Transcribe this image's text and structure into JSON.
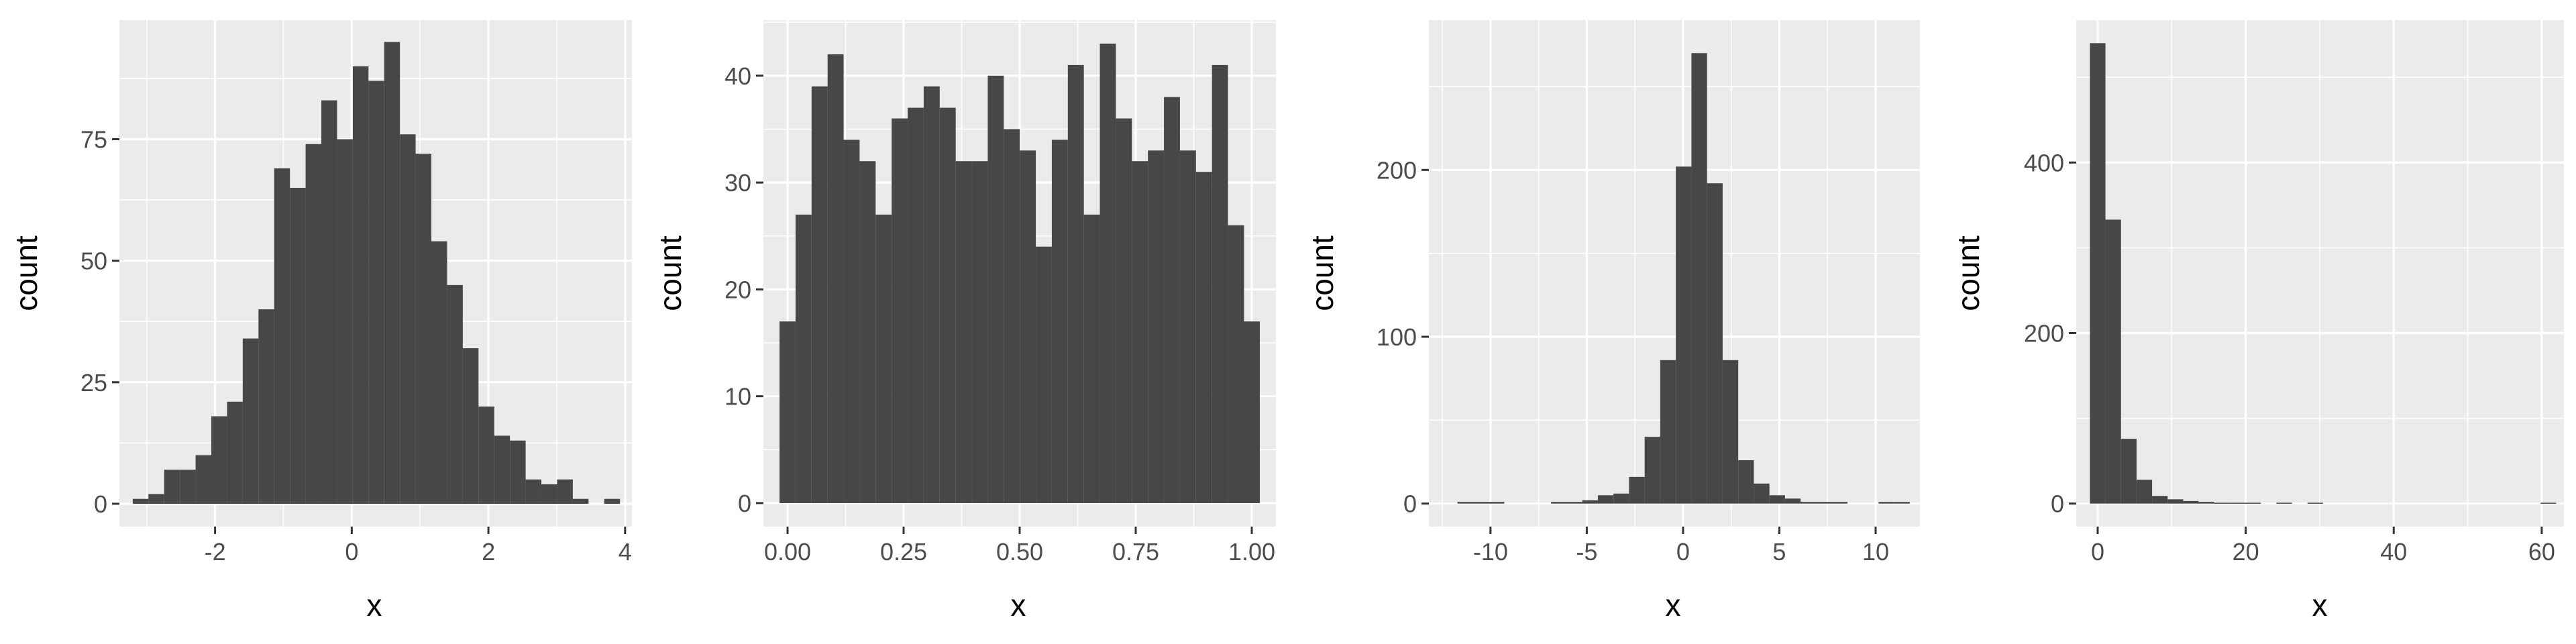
{
  "chart_data": [
    {
      "type": "bar",
      "xlabel": "x",
      "ylabel": "count",
      "xlim": [
        -3.4,
        4.1
      ],
      "ylim": [
        -4.7,
        99.5
      ],
      "xticks": [
        -2,
        0,
        2,
        4
      ],
      "xtick_labels": [
        "-2",
        "0",
        "2",
        "4"
      ],
      "yticks": [
        0,
        25,
        50,
        75
      ],
      "ytick_labels": [
        "0",
        "25",
        "50",
        "75"
      ],
      "grid": true,
      "bin_width": 0.23,
      "bin_centers": [
        -3.09,
        -2.86,
        -2.63,
        -2.4,
        -2.17,
        -1.94,
        -1.71,
        -1.48,
        -1.25,
        -1.02,
        -0.79,
        -0.56,
        -0.33,
        -0.1,
        0.13,
        0.36,
        0.59,
        0.82,
        1.05,
        1.28,
        1.51,
        1.74,
        1.97,
        2.2,
        2.43,
        2.66,
        2.89,
        3.12,
        3.35,
        3.58,
        3.81
      ],
      "values": [
        1,
        2,
        7,
        7,
        10,
        18,
        21,
        34,
        40,
        69,
        65,
        74,
        83,
        75,
        90,
        87,
        95,
        76,
        72,
        54,
        45,
        32,
        20,
        14,
        13,
        5,
        4,
        5,
        1,
        0,
        1
      ]
    },
    {
      "type": "bar",
      "xlabel": "x",
      "ylabel": "count",
      "xlim": [
        -0.052,
        1.052
      ],
      "ylim": [
        -2.2,
        45.2
      ],
      "xticks": [
        0,
        0.25,
        0.5,
        0.75,
        1
      ],
      "xtick_labels": [
        "0.00",
        "0.25",
        "0.50",
        "0.75",
        "1.00"
      ],
      "yticks": [
        0,
        10,
        20,
        30,
        40
      ],
      "ytick_labels": [
        "0",
        "10",
        "20",
        "30",
        "40"
      ],
      "grid": true,
      "bin_width": 0.0345,
      "bin_centers": [
        0.0,
        0.0345,
        0.069,
        0.1035,
        0.138,
        0.1725,
        0.207,
        0.2415,
        0.276,
        0.3105,
        0.345,
        0.3795,
        0.414,
        0.4485,
        0.483,
        0.5175,
        0.552,
        0.5865,
        0.621,
        0.6555,
        0.69,
        0.7245,
        0.759,
        0.7935,
        0.828,
        0.8625,
        0.897,
        0.9315,
        0.966,
        1.0
      ],
      "values": [
        17,
        27,
        39,
        42,
        34,
        32,
        27,
        36,
        37,
        39,
        37,
        32,
        32,
        40,
        35,
        33,
        24,
        34,
        41,
        27,
        43,
        36,
        32,
        33,
        38,
        33,
        31,
        41,
        26,
        17
      ]
    },
    {
      "type": "bar",
      "xlabel": "x",
      "ylabel": "count",
      "xlim": [
        -13.2,
        12.3
      ],
      "ylim": [
        -13.8,
        289.8
      ],
      "xticks": [
        -10,
        -5,
        0,
        5,
        10
      ],
      "xtick_labels": [
        "-10",
        "-5",
        "0",
        "5",
        "10"
      ],
      "yticks": [
        0,
        100,
        200
      ],
      "ytick_labels": [
        "0",
        "100",
        "200"
      ],
      "grid": true,
      "bin_width": 0.81,
      "bin_centers": [
        -12.12,
        -11.31,
        -10.5,
        -9.69,
        -8.88,
        -8.07,
        -7.26,
        -6.45,
        -5.64,
        -4.83,
        -4.02,
        -3.21,
        -2.4,
        -1.59,
        -0.78,
        0.03,
        0.84,
        1.65,
        2.46,
        3.27,
        4.08,
        4.89,
        5.7,
        6.51,
        7.32,
        8.13,
        8.94,
        9.75,
        10.56,
        11.37
      ],
      "values": [
        0,
        1,
        1,
        1,
        0,
        0,
        0,
        1,
        1,
        2,
        5,
        6,
        16,
        40,
        86,
        202,
        270,
        192,
        86,
        26,
        12,
        5,
        3,
        1,
        1,
        1,
        0,
        0,
        1,
        1
      ]
    },
    {
      "type": "bar",
      "xlabel": "x",
      "ylabel": "count",
      "xlim": [
        -2.9,
        63.0
      ],
      "ylim": [
        -27.0,
        567.0
      ],
      "xticks": [
        0,
        20,
        40,
        60
      ],
      "xtick_labels": [
        "0",
        "20",
        "40",
        "60"
      ],
      "yticks": [
        0,
        200,
        400
      ],
      "ytick_labels": [
        "0",
        "200",
        "400"
      ],
      "grid": true,
      "bin_width": 2.1,
      "bin_centers": [
        0.0,
        2.1,
        4.2,
        6.3,
        8.4,
        10.5,
        12.6,
        14.7,
        16.8,
        18.9,
        21.0,
        23.1,
        25.2,
        27.3,
        29.4,
        31.5,
        33.6,
        35.7,
        37.8,
        39.9,
        42.0,
        44.1,
        46.2,
        48.3,
        50.4,
        52.5,
        54.6,
        56.7,
        58.8,
        60.9
      ],
      "values": [
        540,
        333,
        76,
        28,
        9,
        5,
        3,
        2,
        1,
        1,
        1,
        0,
        1,
        0,
        1,
        0,
        0,
        0,
        0,
        0,
        0,
        0,
        0,
        0,
        0,
        0,
        0,
        0,
        0,
        1
      ]
    }
  ]
}
